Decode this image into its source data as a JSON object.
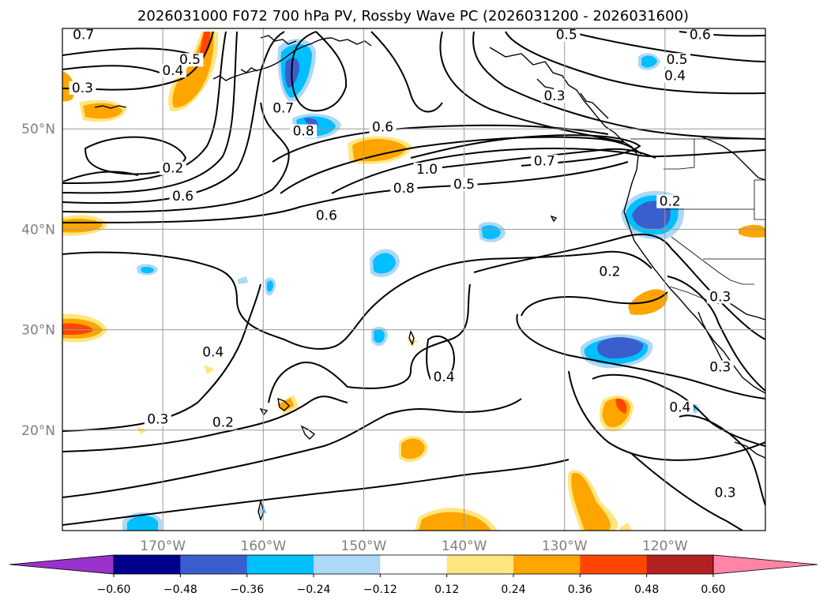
{
  "chart_data": {
    "type": "heatmap",
    "title": "2026031000 F072 700 hPa PV, Rossby Wave PC (2026031200 - 2026031600)",
    "lon_range": [
      -180,
      -110
    ],
    "lat_range": [
      10,
      60
    ],
    "x_ticks": [
      {
        "value": -170,
        "label": "170°W"
      },
      {
        "value": -160,
        "label": "160°W"
      },
      {
        "value": -150,
        "label": "150°W"
      },
      {
        "value": -140,
        "label": "140°W"
      },
      {
        "value": -130,
        "label": "130°W"
      },
      {
        "value": -120,
        "label": "120°W"
      }
    ],
    "y_ticks": [
      {
        "value": 20,
        "label": "20°N"
      },
      {
        "value": 30,
        "label": "30°N"
      },
      {
        "value": 40,
        "label": "40°N"
      },
      {
        "value": 50,
        "label": "50°N"
      }
    ],
    "colorbar": {
      "levels": [
        -0.6,
        -0.48,
        -0.36,
        -0.24,
        -0.12,
        0.12,
        0.24,
        0.36,
        0.48,
        0.6
      ],
      "tick_labels": [
        "−0.60",
        "−0.48",
        "−0.36",
        "−0.24",
        "−0.12",
        "0.12",
        "0.24",
        "0.36",
        "0.48",
        "0.60"
      ],
      "colors": [
        "#9932cc",
        "#00008b",
        "#3a5fcd",
        "#00bfff",
        "#add8f7",
        "#ffffff",
        "#ffe680",
        "#ffa500",
        "#ff4500",
        "#b22222",
        "#ff85a8"
      ]
    },
    "contour_labels": [
      {
        "text": "0.7",
        "lon": -177.9,
        "lat": 59.1
      },
      {
        "text": "0.5",
        "lon": -167.3,
        "lat": 56.6
      },
      {
        "text": "0.4",
        "lon": -169.0,
        "lat": 55.5
      },
      {
        "text": "0.3",
        "lon": -178.0,
        "lat": 53.8
      },
      {
        "text": "0.7",
        "lon": -158.0,
        "lat": 51.8
      },
      {
        "text": "0.8",
        "lon": -156.0,
        "lat": 49.5
      },
      {
        "text": "0.6",
        "lon": -148.1,
        "lat": 49.9
      },
      {
        "text": "0.2",
        "lon": -169.0,
        "lat": 45.8
      },
      {
        "text": "1.0",
        "lon": -143.7,
        "lat": 45.7
      },
      {
        "text": "0.7",
        "lon": -132.0,
        "lat": 46.5
      },
      {
        "text": "0.8",
        "lon": -146.0,
        "lat": 43.8
      },
      {
        "text": "0.5",
        "lon": -140.0,
        "lat": 44.2
      },
      {
        "text": "0.6",
        "lon": -168.0,
        "lat": 43.0
      },
      {
        "text": "0.6",
        "lon": -153.7,
        "lat": 41.1
      },
      {
        "text": "0.5",
        "lon": -129.8,
        "lat": 59.1
      },
      {
        "text": "0.6",
        "lon": -116.5,
        "lat": 59.1
      },
      {
        "text": "0.5",
        "lon": -118.8,
        "lat": 56.6
      },
      {
        "text": "0.4",
        "lon": -119.0,
        "lat": 55.0
      },
      {
        "text": "0.3",
        "lon": -131.0,
        "lat": 53.0
      },
      {
        "text": "0.2",
        "lon": -119.5,
        "lat": 42.5
      },
      {
        "text": "0.2",
        "lon": -125.5,
        "lat": 35.5
      },
      {
        "text": "0.3",
        "lon": -114.5,
        "lat": 33.0
      },
      {
        "text": "0.4",
        "lon": -165.0,
        "lat": 27.5
      },
      {
        "text": "0.4",
        "lon": -142.0,
        "lat": 25.0
      },
      {
        "text": "0.3",
        "lon": -114.5,
        "lat": 26.0
      },
      {
        "text": "0.4",
        "lon": -118.5,
        "lat": 22.0
      },
      {
        "text": "0.3",
        "lon": -170.5,
        "lat": 20.8
      },
      {
        "text": "0.2",
        "lon": -164.0,
        "lat": 20.5
      },
      {
        "text": "0.3",
        "lon": -114.0,
        "lat": 13.5
      }
    ]
  }
}
